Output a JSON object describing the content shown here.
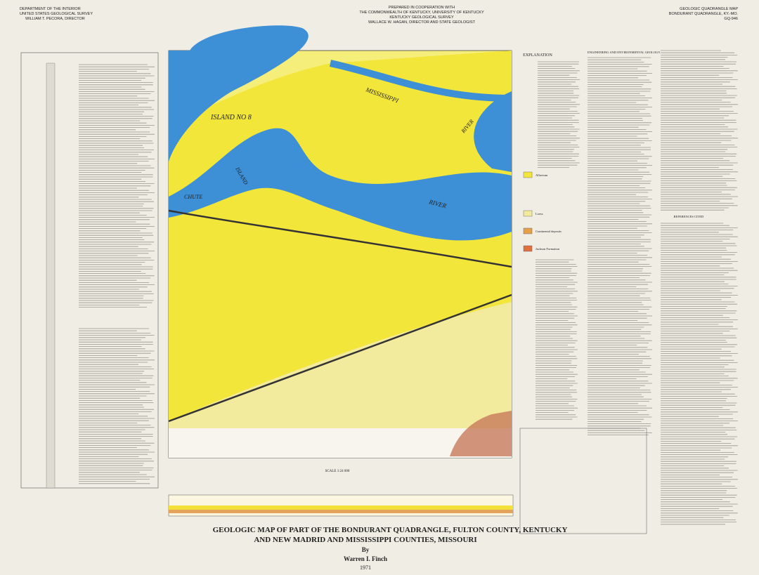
{
  "header": {
    "left": [
      "DEPARTMENT OF THE INTERIOR",
      "UNITED STATES GEOLOGICAL SURVEY",
      "WILLIAM T. PECORA, DIRECTOR"
    ],
    "center": [
      "PREPARED IN COOPERATION WITH",
      "THE COMMONWEALTH OF KENTUCKY, UNIVERSITY OF KENTUCKY",
      "KENTUCKY GEOLOGICAL SURVEY",
      "WALLACE W. HAGAN, DIRECTOR AND STATE GEOLOGIST"
    ],
    "right": [
      "GEOLOGIC QUADRANGLE MAP",
      "BONDURANT QUADRANGLE, KY.-MO.",
      "GQ-946"
    ]
  },
  "map": {
    "labels": [
      "ISLAND NO 8",
      "MISSISSIPPI",
      "RIVER",
      "CHUTE",
      "ISLAND",
      "RIVER"
    ]
  },
  "legend": {
    "heading": "EXPLANATION",
    "items": [
      "Alluvium",
      "Loess",
      "Continental deposits",
      "Jackson Formation"
    ]
  },
  "sections": {
    "engineering": "ENGINEERING AND ENVIRONMENTAL GEOLOGY",
    "references": "REFERENCES CITED",
    "scale": "SCALE 1:24 000"
  },
  "title": {
    "lines": [
      "GEOLOGIC MAP OF PART OF THE BONDURANT QUADRANGLE, FULTON COUNTY, KENTUCKY",
      "AND NEW MADRID AND MISSISSIPPI COUNTIES, MISSOURI"
    ],
    "by": "By",
    "author": "Warren I. Finch",
    "year": "1971"
  }
}
